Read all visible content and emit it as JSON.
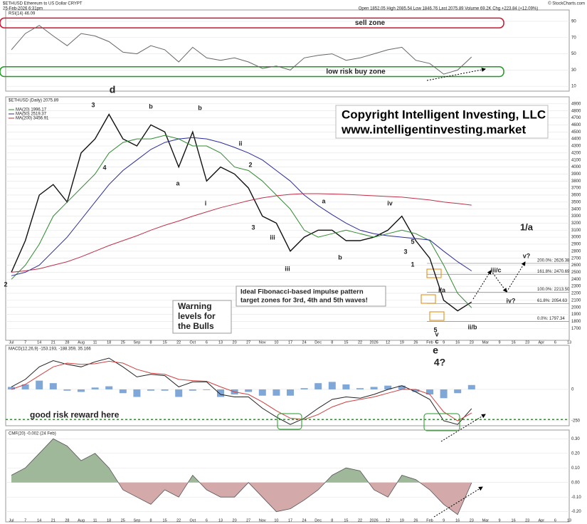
{
  "chart_data": [
    {
      "type": "line",
      "name": "rsi",
      "title": "RSI(14) 46.09",
      "series": [
        {
          "name": "RSI",
          "color": "#666666",
          "values": [
            55,
            75,
            85,
            72,
            60,
            75,
            72,
            65,
            52,
            50,
            60,
            55,
            40,
            58,
            45,
            42,
            45,
            40,
            32,
            35,
            30,
            45,
            48,
            50,
            42,
            45,
            50,
            55,
            58,
            42,
            38,
            25,
            30,
            46.09,
            null,
            null,
            null,
            null,
            null,
            null,
            null
          ]
        }
      ],
      "ylim": [
        4,
        104
      ],
      "yticks": [
        10,
        30,
        50,
        70,
        90
      ],
      "zones": [
        {
          "text": "sell zone",
          "color": "#d0142c",
          "range": [
            82,
            94
          ]
        },
        {
          "text": "low risk buy zone",
          "color": "#1f9a1f",
          "range": [
            22,
            34
          ]
        }
      ]
    },
    {
      "type": "line",
      "name": "price",
      "header": [
        "$ETHUSD Ethereum to US Dollar CRYPT",
        "25-Feb-2026 6:31pm",
        "Open 1852.05 High 2085.54 Low 1846.76 Last 2075.89 Volume 69.2K Chg +223.84 (+12.09%)",
        "© StockCharts.com"
      ],
      "title": "$ETHUSD (Daily) 2075.89",
      "categories": [
        "Jul",
        "7",
        "14",
        "21",
        "28",
        "Aug",
        "11",
        "18",
        "25",
        "Sep",
        "8",
        "15",
        "22",
        "Oct",
        "6",
        "13",
        "20",
        "27",
        "Nov",
        "10",
        "17",
        "24",
        "Dec",
        "8",
        "15",
        "22",
        "2026",
        "12",
        "19",
        "26",
        "Feb",
        "9",
        "16",
        "23",
        "Mar",
        "9",
        "16",
        "23",
        "Apr",
        "6",
        "13"
      ],
      "series": [
        {
          "name": "$ETHUSD",
          "color": "#111111",
          "values": [
            2500,
            2950,
            3600,
            3750,
            3500,
            4200,
            4400,
            4750,
            4400,
            4300,
            4600,
            4500,
            4000,
            4500,
            3800,
            4000,
            3900,
            3700,
            3300,
            3200,
            2800,
            3000,
            3100,
            3100,
            2950,
            2950,
            3000,
            3100,
            3300,
            2950,
            2700,
            2100,
            1950,
            2075.89,
            null,
            null,
            null,
            null,
            null,
            null,
            null
          ]
        },
        {
          "name": "MA(20) 1996.17",
          "color": "#2e8b2e",
          "values": [
            2400,
            2600,
            2900,
            3300,
            3500,
            3700,
            3900,
            4200,
            4350,
            4400,
            4400,
            4450,
            4400,
            4300,
            4300,
            4200,
            4000,
            3950,
            3800,
            3600,
            3400,
            3100,
            3000,
            3050,
            3100,
            3050,
            3000,
            3050,
            3100,
            3050,
            2950,
            2600,
            2200,
            1996.17,
            null,
            null,
            null,
            null,
            null,
            null,
            null
          ]
        },
        {
          "name": "MA(50) 2519.37",
          "color": "#2b2b9b",
          "values": [
            2450,
            2500,
            2600,
            2800,
            3000,
            3250,
            3500,
            3750,
            3950,
            4100,
            4250,
            4350,
            4400,
            4420,
            4400,
            4350,
            4280,
            4200,
            4100,
            3950,
            3800,
            3600,
            3450,
            3320,
            3200,
            3100,
            3050,
            3020,
            3000,
            2980,
            2960,
            2800,
            2650,
            2519.37,
            null,
            null,
            null,
            null,
            null,
            null,
            null
          ]
        },
        {
          "name": "MA(200) 3456.91",
          "color": "#c0304a",
          "values": [
            2500,
            2520,
            2550,
            2600,
            2650,
            2720,
            2800,
            2880,
            2950,
            3020,
            3100,
            3170,
            3230,
            3300,
            3360,
            3420,
            3470,
            3520,
            3560,
            3590,
            3610,
            3620,
            3620,
            3615,
            3610,
            3600,
            3590,
            3580,
            3570,
            3550,
            3530,
            3500,
            3480,
            3456.91,
            null,
            null,
            null,
            null,
            null,
            null,
            null
          ]
        }
      ],
      "ylim": [
        1530,
        5000
      ],
      "yticks": [
        1700,
        1800,
        1900,
        2000,
        2100,
        2200,
        2300,
        2400,
        2500,
        2600,
        2700,
        2800,
        2900,
        3000,
        3100,
        3200,
        3300,
        3400,
        3500,
        3600,
        3700,
        3800,
        3900,
        4000,
        4100,
        4200,
        4300,
        4400,
        4500,
        4600,
        4700,
        4800,
        4900
      ],
      "fib_levels": [
        {
          "value": 2626.38,
          "label": "200.0%: 2626.38"
        },
        {
          "value": 2470.69,
          "label": "161.8%: 2470.69"
        },
        {
          "value": 2213.5,
          "label": "100.0%: 2213.50"
        },
        {
          "value": 2054.63,
          "label": "61.8%: 2054.63"
        },
        {
          "value": 1797.34,
          "label": "0.0%: 1797.34"
        }
      ],
      "copyright": [
        "Copyright Intelligent Investing, LLC",
        "www.intelligentinvesting.market"
      ],
      "warning": [
        "Warning",
        "levels for",
        "the Bulls"
      ],
      "fib_note": [
        "Ideal Fibonacci-based impulse pattern",
        "target zones for 3rd, 4th and 5th waves!"
      ],
      "waves": [
        {
          "text": "d",
          "color": "#cc0000"
        },
        {
          "text": "e",
          "color": "#cc0000"
        },
        {
          "text": "4?",
          "color": "#000000"
        },
        {
          "text": "1/a",
          "color": "#1f8a1f"
        },
        {
          "text": "v?",
          "color": "#444444"
        },
        {
          "text": "iii/c",
          "color": "#444444"
        },
        {
          "text": "iv?",
          "color": "#444444"
        },
        {
          "text": "ii/b",
          "color": "#444444"
        },
        {
          "text": "i/a",
          "color": "#444444"
        },
        {
          "text": "iv",
          "color": "#444444"
        },
        {
          "text": "iii",
          "color": "#444444"
        },
        {
          "text": "b",
          "color": "#444444"
        },
        {
          "text": "3",
          "color": "#1f8a1f"
        },
        {
          "text": "4",
          "color": "#1f8a1f"
        },
        {
          "text": "b",
          "color": "#1f8a1f"
        },
        {
          "text": "a",
          "color": "#1f8a1f"
        },
        {
          "text": "c",
          "color": "#1f8a1f"
        },
        {
          "text": "2",
          "color": "#1f8a1f"
        },
        {
          "text": "5",
          "color": "#e08a00"
        },
        {
          "text": "1",
          "color": "#e08a00"
        },
        {
          "text": "3",
          "color": "#e08a00"
        },
        {
          "text": "2",
          "color": "#e08a00"
        },
        {
          "text": "a",
          "color": "#e08a00"
        },
        {
          "text": "b",
          "color": "#e08a00"
        },
        {
          "text": "3",
          "color": "#2020a0"
        },
        {
          "text": "5",
          "color": "#2020a0"
        },
        {
          "text": "iii",
          "color": "#2020a0"
        },
        {
          "text": "ii",
          "color": "#444444"
        },
        {
          "text": "v",
          "color": "#444444"
        },
        {
          "text": "i",
          "color": "#444444"
        }
      ]
    },
    {
      "type": "line",
      "name": "macd",
      "title": "MACD(12,26,9) -153.193, -188.359, 35.166",
      "series": [
        {
          "name": "MACD",
          "color": "#222222",
          "values": [
            20,
            80,
            180,
            230,
            200,
            180,
            220,
            250,
            180,
            100,
            120,
            110,
            20,
            60,
            60,
            -40,
            -60,
            -60,
            -150,
            -220,
            -280,
            -230,
            -150,
            -80,
            -60,
            -70,
            -40,
            0,
            30,
            -20,
            -80,
            -250,
            -280,
            -153.193,
            null,
            null,
            null,
            null,
            null,
            null,
            null
          ]
        },
        {
          "name": "Signal",
          "color": "#d04040",
          "values": [
            0,
            40,
            110,
            180,
            210,
            200,
            205,
            225,
            210,
            160,
            130,
            120,
            80,
            70,
            65,
            20,
            -20,
            -40,
            -100,
            -170,
            -230,
            -240,
            -200,
            -140,
            -100,
            -80,
            -60,
            -30,
            0,
            0,
            -40,
            -180,
            -250,
            -188.359,
            null,
            null,
            null,
            null,
            null,
            null,
            null
          ]
        }
      ],
      "histogram": {
        "color": "#7fa8d8",
        "values": [
          20,
          40,
          70,
          50,
          -10,
          -20,
          15,
          25,
          -30,
          -60,
          -10,
          -10,
          -60,
          -10,
          -5,
          -60,
          -40,
          -20,
          -50,
          -50,
          -50,
          10,
          50,
          60,
          40,
          10,
          20,
          30,
          30,
          -20,
          -40,
          -70,
          -30,
          35.166,
          null,
          null,
          null,
          null,
          null,
          null,
          null
        ]
      },
      "ylim": [
        -290,
        352
      ],
      "yticks": [
        -250,
        0
      ],
      "note": "good risk reward here",
      "note_level": -240
    },
    {
      "type": "area",
      "name": "cmf",
      "title": "CMF(20) -0.002 (24 Feb)",
      "series": [
        {
          "name": "CMF",
          "color": "#555555",
          "values": [
            0.05,
            0.1,
            0.2,
            0.3,
            0.25,
            0.15,
            0.2,
            0.1,
            -0.05,
            -0.1,
            -0.15,
            -0.05,
            -0.1,
            0.05,
            -0.05,
            -0.1,
            -0.1,
            0.0,
            -0.1,
            -0.2,
            -0.18,
            -0.12,
            -0.05,
            0.05,
            0.1,
            0.08,
            -0.05,
            -0.1,
            0.05,
            0.02,
            -0.05,
            -0.15,
            -0.22,
            -0.002,
            null,
            null,
            null,
            null,
            null,
            null,
            null
          ]
        }
      ],
      "ylim": [
        -0.27,
        0.36
      ],
      "yticks": [
        {
          "value": 0.3,
          "label": "0.30"
        },
        {
          "value": 0.2,
          "label": "0.20"
        },
        {
          "value": 0.1,
          "label": "0.10"
        },
        {
          "value": 0,
          "label": "0.00"
        },
        {
          "value": -0.1,
          "label": "-0.10"
        },
        {
          "value": -0.2,
          "label": "-0.20"
        }
      ]
    }
  ]
}
